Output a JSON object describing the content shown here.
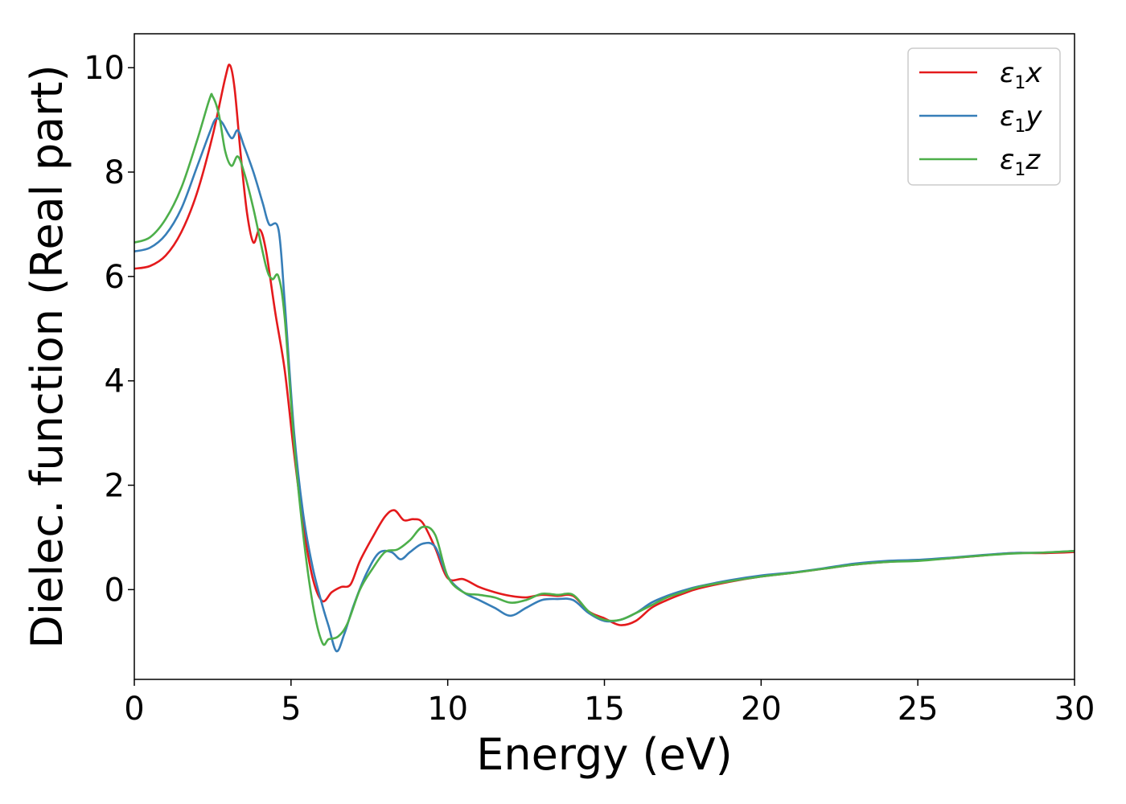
{
  "chart_data": {
    "type": "line",
    "xlabel": "Energy (eV)",
    "ylabel": "Dielec. function (Real part)",
    "xlim": [
      0,
      30
    ],
    "ylim": [
      -1.72,
      10.65
    ],
    "xticks": [
      0,
      5,
      10,
      15,
      20,
      25,
      30
    ],
    "xtick_labels": [
      "0",
      "5",
      "10",
      "15",
      "20",
      "25",
      "30"
    ],
    "yticks": [
      0,
      2,
      4,
      6,
      8,
      10
    ],
    "ytick_labels": [
      "0",
      "2",
      "4",
      "6",
      "8",
      "10"
    ],
    "grid": false,
    "legend_position": "top-right",
    "series": [
      {
        "name": "ε1x",
        "legend_base": "ε",
        "legend_sub": "1",
        "legend_tail": "x",
        "color": "#e41a1c",
        "points": [
          [
            0,
            6.15
          ],
          [
            0.5,
            6.2
          ],
          [
            1,
            6.4
          ],
          [
            1.5,
            6.85
          ],
          [
            2,
            7.6
          ],
          [
            2.5,
            8.7
          ],
          [
            2.9,
            9.8
          ],
          [
            3.05,
            10.05
          ],
          [
            3.2,
            9.6
          ],
          [
            3.4,
            8.3
          ],
          [
            3.6,
            7.2
          ],
          [
            3.8,
            6.65
          ],
          [
            4,
            6.9
          ],
          [
            4.2,
            6.5
          ],
          [
            4.5,
            5.3
          ],
          [
            4.8,
            4.2
          ],
          [
            5.1,
            2.6
          ],
          [
            5.4,
            1.2
          ],
          [
            5.7,
            0.2
          ],
          [
            6,
            -0.22
          ],
          [
            6.3,
            -0.05
          ],
          [
            6.6,
            0.05
          ],
          [
            6.9,
            0.1
          ],
          [
            7.2,
            0.55
          ],
          [
            7.6,
            1.0
          ],
          [
            8,
            1.4
          ],
          [
            8.3,
            1.52
          ],
          [
            8.6,
            1.33
          ],
          [
            8.9,
            1.35
          ],
          [
            9.2,
            1.28
          ],
          [
            9.6,
            0.8
          ],
          [
            10,
            0.22
          ],
          [
            10.5,
            0.2
          ],
          [
            11,
            0.05
          ],
          [
            11.5,
            -0.05
          ],
          [
            12,
            -0.12
          ],
          [
            12.5,
            -0.15
          ],
          [
            13,
            -0.1
          ],
          [
            13.5,
            -0.12
          ],
          [
            14,
            -0.12
          ],
          [
            14.5,
            -0.42
          ],
          [
            15,
            -0.55
          ],
          [
            15.5,
            -0.68
          ],
          [
            16,
            -0.6
          ],
          [
            16.5,
            -0.35
          ],
          [
            17,
            -0.2
          ],
          [
            17.5,
            -0.08
          ],
          [
            18,
            0.02
          ],
          [
            19,
            0.15
          ],
          [
            20,
            0.25
          ],
          [
            21,
            0.32
          ],
          [
            22,
            0.4
          ],
          [
            23,
            0.48
          ],
          [
            24,
            0.53
          ],
          [
            25,
            0.56
          ],
          [
            26,
            0.6
          ],
          [
            27,
            0.65
          ],
          [
            28,
            0.7
          ],
          [
            29,
            0.7
          ],
          [
            30,
            0.72
          ]
        ]
      },
      {
        "name": "ε1y",
        "legend_base": "ε",
        "legend_sub": "1",
        "legend_tail": "y",
        "color": "#377eb8",
        "points": [
          [
            0,
            6.48
          ],
          [
            0.5,
            6.55
          ],
          [
            1,
            6.8
          ],
          [
            1.5,
            7.3
          ],
          [
            2,
            8.1
          ],
          [
            2.4,
            8.75
          ],
          [
            2.6,
            9.02
          ],
          [
            2.8,
            8.95
          ],
          [
            3.1,
            8.65
          ],
          [
            3.3,
            8.8
          ],
          [
            3.5,
            8.5
          ],
          [
            3.8,
            8.0
          ],
          [
            4.1,
            7.4
          ],
          [
            4.3,
            7.0
          ],
          [
            4.6,
            6.9
          ],
          [
            4.8,
            5.5
          ],
          [
            5.1,
            3.0
          ],
          [
            5.4,
            1.4
          ],
          [
            5.7,
            0.4
          ],
          [
            6,
            -0.3
          ],
          [
            6.2,
            -0.7
          ],
          [
            6.45,
            -1.18
          ],
          [
            6.7,
            -0.85
          ],
          [
            7,
            -0.3
          ],
          [
            7.4,
            0.3
          ],
          [
            7.8,
            0.7
          ],
          [
            8.2,
            0.72
          ],
          [
            8.5,
            0.58
          ],
          [
            8.8,
            0.72
          ],
          [
            9.2,
            0.88
          ],
          [
            9.6,
            0.82
          ],
          [
            10,
            0.25
          ],
          [
            10.5,
            -0.05
          ],
          [
            11,
            -0.2
          ],
          [
            11.5,
            -0.35
          ],
          [
            12,
            -0.5
          ],
          [
            12.5,
            -0.35
          ],
          [
            13,
            -0.2
          ],
          [
            13.5,
            -0.18
          ],
          [
            14,
            -0.2
          ],
          [
            14.5,
            -0.45
          ],
          [
            15,
            -0.6
          ],
          [
            15.5,
            -0.58
          ],
          [
            16,
            -0.45
          ],
          [
            16.5,
            -0.25
          ],
          [
            17,
            -0.12
          ],
          [
            17.5,
            -0.02
          ],
          [
            18,
            0.06
          ],
          [
            19,
            0.18
          ],
          [
            20,
            0.27
          ],
          [
            21,
            0.33
          ],
          [
            22,
            0.41
          ],
          [
            23,
            0.5
          ],
          [
            24,
            0.55
          ],
          [
            25,
            0.57
          ],
          [
            26,
            0.61
          ],
          [
            27,
            0.66
          ],
          [
            28,
            0.7
          ],
          [
            29,
            0.71
          ],
          [
            30,
            0.74
          ]
        ]
      },
      {
        "name": "ε1z",
        "legend_base": "ε",
        "legend_sub": "1",
        "legend_tail": "z",
        "color": "#4daf4a",
        "points": [
          [
            0,
            6.65
          ],
          [
            0.5,
            6.75
          ],
          [
            1,
            7.1
          ],
          [
            1.5,
            7.7
          ],
          [
            2,
            8.6
          ],
          [
            2.4,
            9.4
          ],
          [
            2.5,
            9.45
          ],
          [
            2.7,
            9.1
          ],
          [
            2.9,
            8.4
          ],
          [
            3.1,
            8.12
          ],
          [
            3.3,
            8.3
          ],
          [
            3.5,
            8.0
          ],
          [
            3.8,
            7.3
          ],
          [
            4.2,
            6.2
          ],
          [
            4.4,
            5.95
          ],
          [
            4.6,
            6.0
          ],
          [
            4.8,
            5.2
          ],
          [
            5.1,
            2.8
          ],
          [
            5.4,
            1.0
          ],
          [
            5.7,
            -0.3
          ],
          [
            6,
            -1.02
          ],
          [
            6.2,
            -0.95
          ],
          [
            6.5,
            -0.9
          ],
          [
            6.8,
            -0.65
          ],
          [
            7.2,
            0.0
          ],
          [
            7.6,
            0.4
          ],
          [
            8,
            0.72
          ],
          [
            8.4,
            0.77
          ],
          [
            8.8,
            0.95
          ],
          [
            9.2,
            1.2
          ],
          [
            9.6,
            1.05
          ],
          [
            10,
            0.25
          ],
          [
            10.5,
            -0.05
          ],
          [
            11,
            -0.1
          ],
          [
            11.5,
            -0.15
          ],
          [
            12,
            -0.25
          ],
          [
            12.5,
            -0.2
          ],
          [
            13,
            -0.08
          ],
          [
            13.5,
            -0.1
          ],
          [
            14,
            -0.1
          ],
          [
            14.5,
            -0.42
          ],
          [
            15,
            -0.58
          ],
          [
            15.5,
            -0.58
          ],
          [
            16,
            -0.45
          ],
          [
            16.5,
            -0.3
          ],
          [
            17,
            -0.15
          ],
          [
            17.5,
            -0.05
          ],
          [
            18,
            0.05
          ],
          [
            19,
            0.16
          ],
          [
            20,
            0.25
          ],
          [
            21,
            0.32
          ],
          [
            22,
            0.4
          ],
          [
            23,
            0.48
          ],
          [
            24,
            0.53
          ],
          [
            25,
            0.55
          ],
          [
            26,
            0.6
          ],
          [
            27,
            0.65
          ],
          [
            28,
            0.69
          ],
          [
            29,
            0.71
          ],
          [
            30,
            0.74
          ]
        ]
      }
    ]
  }
}
